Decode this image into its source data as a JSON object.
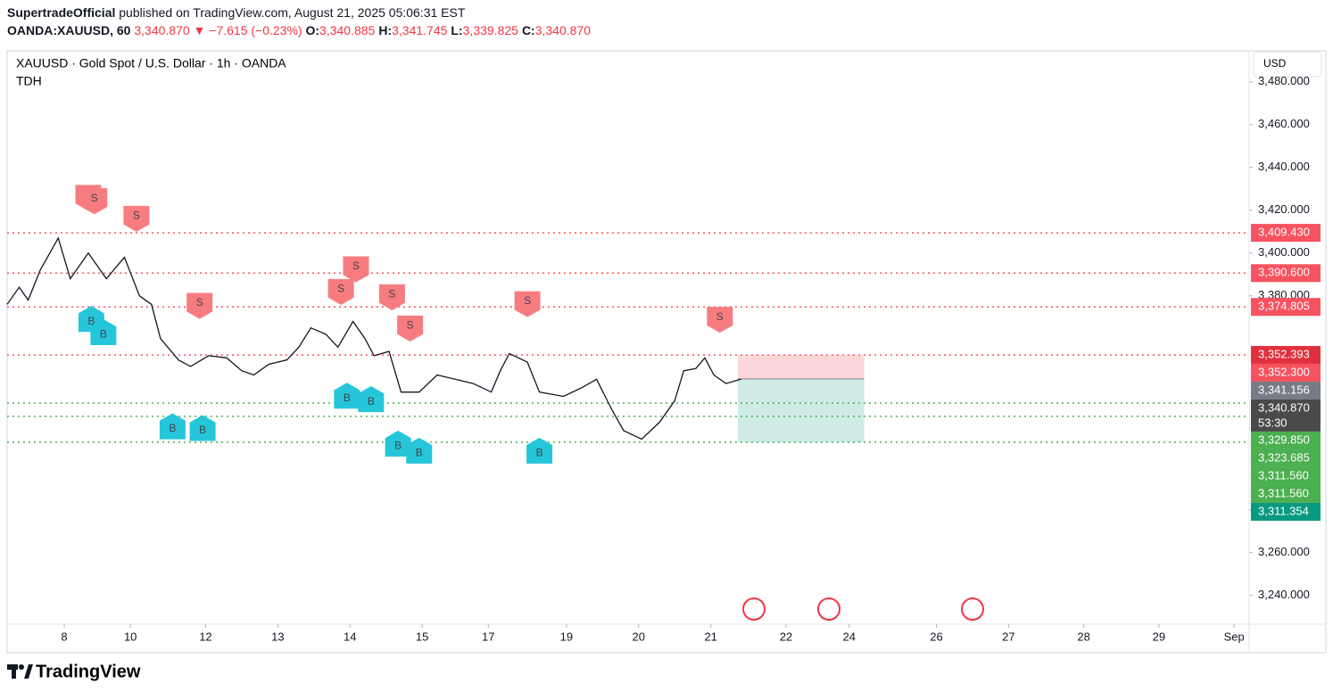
{
  "header": {
    "author": "SupertradeOfficial",
    "published": "published on TradingView.com, August 21, 2025 05:06:31 EST",
    "symbol": "OANDA:XAUUSD, 60",
    "last": "3,340.870",
    "arrow": "▼",
    "change": "−7.615 (−0.23%)",
    "ohlc": [
      {
        "key": "O:",
        "value": "3,340.885"
      },
      {
        "key": "H:",
        "value": "3,341.745"
      },
      {
        "key": "L:",
        "value": "3,339.825"
      },
      {
        "key": "C:",
        "value": "3,340.870"
      }
    ]
  },
  "chart_data": {
    "type": "line",
    "title": "XAUUSD · Gold Spot / U.S. Dollar · 1h · OANDA",
    "subtitle": "TDH",
    "currency": "USD",
    "color": "#131722",
    "x": [
      0,
      4,
      7,
      11,
      17,
      21,
      27,
      33,
      39,
      44,
      48,
      51,
      57,
      61,
      67,
      73,
      78,
      82,
      87,
      93,
      97,
      101,
      106,
      110,
      115,
      119,
      122,
      127,
      131,
      137,
      143,
      149,
      155,
      161,
      164,
      167,
      173,
      177,
      185,
      191,
      196,
      201,
      205,
      211,
      217,
      222,
      225,
      229,
      232,
      235,
      239,
      244
    ],
    "values": [
      3376,
      3384,
      3378,
      3392,
      3407,
      3388,
      3400,
      3388,
      3398,
      3380,
      3376,
      3360,
      3350,
      3347,
      3352,
      3351,
      3345,
      3343,
      3348,
      3350,
      3356,
      3365,
      3362,
      3356,
      3368,
      3360,
      3352,
      3354,
      3335,
      3335,
      3343,
      3341,
      3339,
      3335,
      3345,
      3353,
      3349,
      3335,
      3333,
      3337,
      3341,
      3327,
      3317,
      3313,
      3321,
      3331,
      3345,
      3346,
      3351,
      3343,
      3339,
      3341
    ],
    "xlim": [
      0,
      413
    ],
    "xticks": [
      {
        "value": 19,
        "label": "8"
      },
      {
        "value": 41,
        "label": "10"
      },
      {
        "value": 66,
        "label": "12"
      },
      {
        "value": 90,
        "label": "13"
      },
      {
        "value": 114,
        "label": "14"
      },
      {
        "value": 138,
        "label": "15"
      },
      {
        "value": 160,
        "label": "17"
      },
      {
        "value": 186,
        "label": "19"
      },
      {
        "value": 210,
        "label": "20"
      },
      {
        "value": 234,
        "label": "21"
      },
      {
        "value": 259,
        "label": "22"
      },
      {
        "value": 280,
        "label": "24"
      },
      {
        "value": 309,
        "label": "26"
      },
      {
        "value": 333,
        "label": "27"
      },
      {
        "value": 358,
        "label": "28"
      },
      {
        "value": 383,
        "label": "29"
      },
      {
        "value": 408,
        "label": "Sep"
      }
    ],
    "ylim": [
      3226.5,
      3494.5
    ],
    "yticks": [
      {
        "value": 3480,
        "label": "3,480.000"
      },
      {
        "value": 3460,
        "label": "3,460.000"
      },
      {
        "value": 3440,
        "label": "3,440.000"
      },
      {
        "value": 3420,
        "label": "3,420.000"
      },
      {
        "value": 3400,
        "label": "3,400.000"
      },
      {
        "value": 3380,
        "label": "3,380.000"
      },
      {
        "value": 3280,
        "label": "3,280.000"
      },
      {
        "value": 3260,
        "label": "3,260.000"
      },
      {
        "value": 3240,
        "label": "3,240.000"
      }
    ],
    "price_labels": [
      {
        "value": 3409.43,
        "label": "3,409.430",
        "color": "#f7525f",
        "dotted": true
      },
      {
        "value": 3390.6,
        "label": "3,390.600",
        "color": "#f7525f",
        "dotted": true
      },
      {
        "value": 3374.805,
        "label": "3,374.805",
        "color": "#f7525f",
        "dotted": true
      },
      {
        "value": 3352.393,
        "label": "3,352.393",
        "color": "#e0303e",
        "dotted": false
      },
      {
        "value": 3352.3,
        "label": "3,352.300",
        "color": "#f7525f",
        "dotted": true
      },
      {
        "value": 3341.156,
        "label": "3,341.156",
        "color": "#787b86",
        "dotted": false
      },
      {
        "value": 3340.87,
        "label": "3,340.870",
        "color": "#4a4a4a",
        "dotted": false,
        "sublabel": "53:30"
      },
      {
        "value": 3329.85,
        "label": "3,329.850",
        "color": "#4caf50",
        "dotted": true
      },
      {
        "value": 3323.685,
        "label": "3,323.685",
        "color": "#4caf50",
        "dotted": true
      },
      {
        "value": 3311.56,
        "label": "3,311.560",
        "color": "#4caf50",
        "dotted": true
      },
      {
        "value": 3311.56,
        "label": "3,311.560",
        "color": "#4caf50",
        "dotted": false
      },
      {
        "value": 3311.354,
        "label": "3,311.354",
        "color": "#089981",
        "dotted": false
      }
    ],
    "position": {
      "stop": 3352.3,
      "entry": 3341.156,
      "target": 3311.56,
      "x": [
        243,
        285
      ]
    },
    "signals": [
      {
        "type": "S",
        "x": 27,
        "price": 3425.8
      },
      {
        "type": "S",
        "x": 29,
        "price": 3424.2
      },
      {
        "type": "S",
        "x": 43,
        "price": 3416
      },
      {
        "type": "S",
        "x": 64,
        "price": 3375.3
      },
      {
        "type": "S",
        "x": 111,
        "price": 3381.8
      },
      {
        "type": "S",
        "x": 116,
        "price": 3392.4
      },
      {
        "type": "S",
        "x": 128,
        "price": 3379.3
      },
      {
        "type": "S",
        "x": 134,
        "price": 3364.7
      },
      {
        "type": "S",
        "x": 173,
        "price": 3376.1
      },
      {
        "type": "S",
        "x": 237,
        "price": 3368.8
      },
      {
        "type": "B",
        "x": 28,
        "price": 3369.2
      },
      {
        "type": "B",
        "x": 32,
        "price": 3363
      },
      {
        "type": "B",
        "x": 55,
        "price": 3319
      },
      {
        "type": "B",
        "x": 65,
        "price": 3318.2
      },
      {
        "type": "B",
        "x": 113,
        "price": 3333.3
      },
      {
        "type": "B",
        "x": 121,
        "price": 3331.7
      },
      {
        "type": "B",
        "x": 130,
        "price": 3310.9
      },
      {
        "type": "B",
        "x": 137,
        "price": 3307.6
      },
      {
        "type": "B",
        "x": 177,
        "price": 3307.6
      }
    ]
  },
  "footer": {
    "brand": "TradingView"
  }
}
